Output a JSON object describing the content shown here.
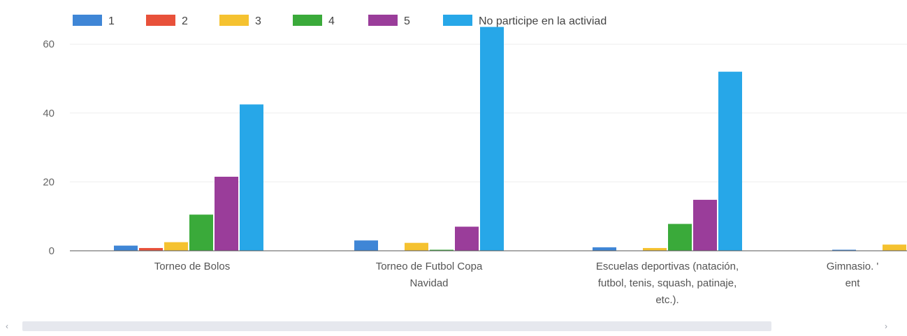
{
  "chart_data": {
    "type": "bar",
    "categories": [
      [
        "Torneo de Bolos"
      ],
      [
        "Torneo de Futbol Copa",
        "Navidad"
      ],
      [
        "Escuelas deportivas (natación,",
        "futbol, tenis, squash, patinaje,",
        "etc.)."
      ],
      [
        "Gimnasio. '",
        "ent"
      ]
    ],
    "series": [
      {
        "name": "1",
        "color": "#3f86d6",
        "values": [
          1.5,
          3,
          1,
          0.3
        ]
      },
      {
        "name": "2",
        "color": "#e8513a",
        "values": [
          0.8,
          0,
          0,
          0
        ]
      },
      {
        "name": "3",
        "color": "#f5c230",
        "values": [
          2.5,
          2.3,
          0.8,
          1.8
        ]
      },
      {
        "name": "4",
        "color": "#3aaa3a",
        "values": [
          10.5,
          0.3,
          7.8,
          0
        ]
      },
      {
        "name": "5",
        "color": "#9a3d9a",
        "values": [
          21.5,
          7,
          14.8,
          0
        ]
      },
      {
        "name": "No participe en la activiad",
        "color": "#27a7e8",
        "values": [
          42.5,
          65,
          52,
          0
        ]
      }
    ],
    "yticks": [
      0,
      20,
      40,
      60
    ],
    "ylim": [
      0,
      65
    ],
    "grid": true,
    "legend_position": "top"
  },
  "scrollbar": {
    "left_arrow": "‹",
    "right_arrow": "›"
  }
}
